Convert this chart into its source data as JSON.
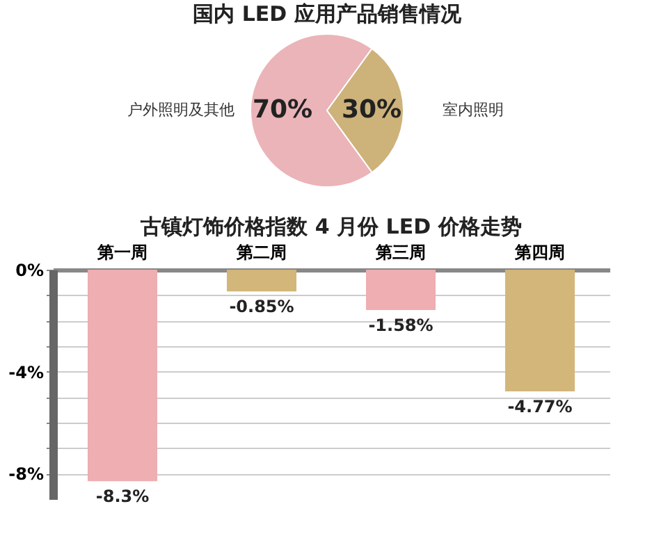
{
  "chart_data": [
    {
      "type": "pie",
      "title": "国内 LED 应用产品销售情况",
      "categories": [
        "户外照明及其他",
        "室内照明"
      ],
      "values": [
        70,
        30
      ],
      "colors": [
        "#eab4b8",
        "#cdb27a"
      ],
      "value_labels": [
        "70%",
        "30%"
      ]
    },
    {
      "type": "bar",
      "title": "古镇灯饰价格指数 4 月份 LED 价格走势",
      "categories": [
        "第一周",
        "第二周",
        "第三周",
        "第四周"
      ],
      "values": [
        -8.3,
        -0.85,
        -1.58,
        -4.77
      ],
      "colors": [
        "#eeaeb2",
        "#d2b67a",
        "#eeaeb2",
        "#d2b67a"
      ],
      "value_labels": [
        "-8.3%",
        "-0.85%",
        "-1.58%",
        "-4.77%"
      ],
      "ylim": [
        -9,
        0
      ],
      "yticks": [
        {
          "value": 0,
          "label": "0%"
        },
        {
          "value": -1,
          "label": null
        },
        {
          "value": -2,
          "label": null
        },
        {
          "value": -3,
          "label": null
        },
        {
          "value": -4,
          "label": "-4%"
        },
        {
          "value": -5,
          "label": null
        },
        {
          "value": -6,
          "label": null
        },
        {
          "value": -7,
          "label": null
        },
        {
          "value": -8,
          "label": "-8%"
        }
      ],
      "grid": "y"
    }
  ]
}
